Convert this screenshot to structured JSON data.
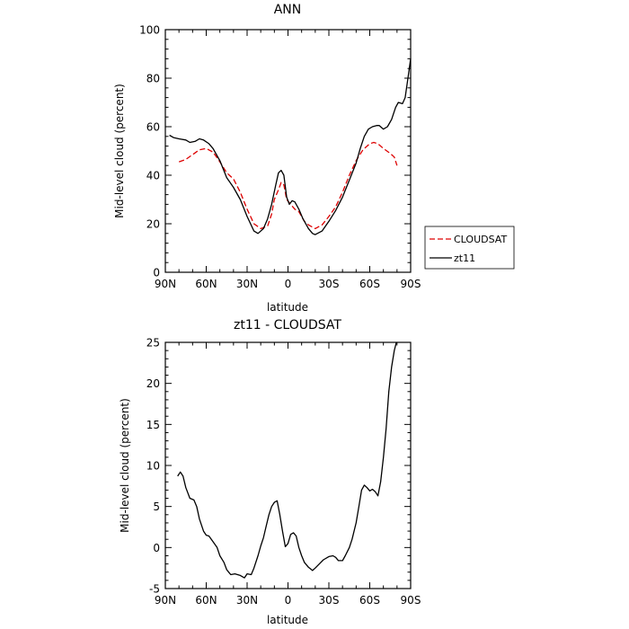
{
  "chart_data": [
    {
      "type": "line",
      "title": "ANN",
      "xlabel": "latitude",
      "ylabel": "Mid-level cloud (percent)",
      "xlim": [
        90,
        -90
      ],
      "ylim": [
        0,
        100
      ],
      "x_ticks": [
        90,
        60,
        30,
        0,
        -30,
        -60,
        -90
      ],
      "x_tick_labels": [
        "90N",
        "60N",
        "30N",
        "0",
        "30S",
        "60S",
        "90S"
      ],
      "y_ticks": [
        0,
        20,
        40,
        60,
        80,
        100
      ],
      "y_tick_labels": [
        "0",
        "20",
        "40",
        "60",
        "80",
        "100"
      ],
      "legend_position": "right",
      "series": [
        {
          "name": "CLOUDSAT",
          "color": "#dd0000",
          "dash": true,
          "points": [
            [
              80,
              45.5
            ],
            [
              75,
              46.5
            ],
            [
              70,
              48.5
            ],
            [
              65,
              50.5
            ],
            [
              60,
              51
            ],
            [
              55,
              49.5
            ],
            [
              50,
              45.5
            ],
            [
              45,
              41
            ],
            [
              40,
              38.5
            ],
            [
              35,
              33
            ],
            [
              30,
              26
            ],
            [
              25,
              20
            ],
            [
              20,
              18
            ],
            [
              15,
              19
            ],
            [
              12,
              24
            ],
            [
              10,
              30
            ],
            [
              7,
              34
            ],
            [
              5,
              37
            ],
            [
              3,
              36
            ],
            [
              1,
              30
            ],
            [
              -2,
              28
            ],
            [
              -5,
              26
            ],
            [
              -8,
              25
            ],
            [
              -12,
              21
            ],
            [
              -15,
              19.5
            ],
            [
              -20,
              18
            ],
            [
              -25,
              19.5
            ],
            [
              -30,
              23
            ],
            [
              -35,
              27
            ],
            [
              -40,
              33
            ],
            [
              -45,
              40
            ],
            [
              -50,
              46
            ],
            [
              -55,
              50.5
            ],
            [
              -60,
              53
            ],
            [
              -63,
              53.5
            ],
            [
              -66,
              53
            ],
            [
              -70,
              51
            ],
            [
              -75,
              49
            ],
            [
              -78,
              47.5
            ],
            [
              -80,
              44
            ]
          ]
        },
        {
          "name": "zt11",
          "color": "#000000",
          "dash": false,
          "points": [
            [
              87,
              56.5
            ],
            [
              84,
              55.5
            ],
            [
              80,
              55
            ],
            [
              75,
              54.5
            ],
            [
              72,
              53.5
            ],
            [
              68,
              54
            ],
            [
              65,
              55
            ],
            [
              62,
              54.5
            ],
            [
              58,
              53
            ],
            [
              55,
              51
            ],
            [
              50,
              46
            ],
            [
              45,
              39
            ],
            [
              40,
              35
            ],
            [
              35,
              30
            ],
            [
              30,
              23
            ],
            [
              25,
              17
            ],
            [
              22,
              16
            ],
            [
              18,
              18
            ],
            [
              15,
              22
            ],
            [
              12,
              28
            ],
            [
              9,
              36
            ],
            [
              7,
              41
            ],
            [
              5,
              42
            ],
            [
              3,
              40
            ],
            [
              1,
              31
            ],
            [
              -1,
              28
            ],
            [
              -3,
              29.5
            ],
            [
              -5,
              29
            ],
            [
              -8,
              26
            ],
            [
              -11,
              22
            ],
            [
              -15,
              18
            ],
            [
              -18,
              16
            ],
            [
              -20,
              15.5
            ],
            [
              -25,
              17
            ],
            [
              -30,
              21
            ],
            [
              -35,
              25.5
            ],
            [
              -40,
              31
            ],
            [
              -45,
              38
            ],
            [
              -50,
              45
            ],
            [
              -53,
              51
            ],
            [
              -56,
              56
            ],
            [
              -59,
              59
            ],
            [
              -62,
              60
            ],
            [
              -65,
              60.5
            ],
            [
              -67,
              60.5
            ],
            [
              -70,
              59
            ],
            [
              -73,
              60
            ],
            [
              -76,
              63
            ],
            [
              -79,
              68
            ],
            [
              -81,
              70
            ],
            [
              -84,
              69.5
            ],
            [
              -86,
              72
            ],
            [
              -88,
              80
            ],
            [
              -90,
              88
            ]
          ]
        }
      ]
    },
    {
      "type": "line",
      "title": "zt11 - CLOUDSAT",
      "xlabel": "latitude",
      "ylabel": "Mid-level cloud (percent)",
      "xlim": [
        90,
        -90
      ],
      "ylim": [
        -5,
        25
      ],
      "x_ticks": [
        90,
        60,
        30,
        0,
        -30,
        -60,
        -90
      ],
      "x_tick_labels": [
        "90N",
        "60N",
        "30N",
        "0",
        "30S",
        "60S",
        "90S"
      ],
      "y_ticks": [
        -5,
        0,
        5,
        10,
        15,
        20,
        25
      ],
      "y_tick_labels": [
        "-5",
        "0",
        "5",
        "10",
        "15",
        "20",
        "25"
      ],
      "series": [
        {
          "color": "#000000",
          "dash": false,
          "points": [
            [
              81,
              8.7
            ],
            [
              79,
              9.2
            ],
            [
              77,
              8.7
            ],
            [
              75,
              7.3
            ],
            [
              72,
              6.0
            ],
            [
              69,
              5.8
            ],
            [
              67,
              5.0
            ],
            [
              65,
              3.5
            ],
            [
              62,
              2.0
            ],
            [
              60,
              1.5
            ],
            [
              58,
              1.4
            ],
            [
              55,
              0.7
            ],
            [
              52,
              0.0
            ],
            [
              50,
              -1.0
            ],
            [
              47,
              -1.8
            ],
            [
              45,
              -2.7
            ],
            [
              42,
              -3.3
            ],
            [
              39,
              -3.2
            ],
            [
              35,
              -3.4
            ],
            [
              32,
              -3.7
            ],
            [
              30,
              -3.2
            ],
            [
              27,
              -3.3
            ],
            [
              25,
              -2.5
            ],
            [
              22,
              -1.0
            ],
            [
              20,
              0.2
            ],
            [
              18,
              1.2
            ],
            [
              16,
              2.6
            ],
            [
              14,
              4.0
            ],
            [
              12,
              5.0
            ],
            [
              10,
              5.5
            ],
            [
              8,
              5.7
            ],
            [
              6,
              4.0
            ],
            [
              4,
              2.0
            ],
            [
              2,
              0.1
            ],
            [
              0,
              0.5
            ],
            [
              -2,
              1.6
            ],
            [
              -4,
              1.8
            ],
            [
              -6,
              1.4
            ],
            [
              -8,
              0.0
            ],
            [
              -10,
              -1.0
            ],
            [
              -12,
              -1.8
            ],
            [
              -15,
              -2.4
            ],
            [
              -18,
              -2.8
            ],
            [
              -20,
              -2.5
            ],
            [
              -23,
              -2.0
            ],
            [
              -26,
              -1.5
            ],
            [
              -30,
              -1.1
            ],
            [
              -33,
              -1.0
            ],
            [
              -35,
              -1.2
            ],
            [
              -37,
              -1.6
            ],
            [
              -40,
              -1.6
            ],
            [
              -42,
              -1.0
            ],
            [
              -45,
              0.0
            ],
            [
              -47,
              1.0
            ],
            [
              -50,
              3.0
            ],
            [
              -52,
              5.0
            ],
            [
              -54,
              7.0
            ],
            [
              -56,
              7.6
            ],
            [
              -58,
              7.3
            ],
            [
              -60,
              6.9
            ],
            [
              -62,
              7.1
            ],
            [
              -64,
              6.8
            ],
            [
              -66,
              6.3
            ],
            [
              -68,
              8.0
            ],
            [
              -70,
              11.0
            ],
            [
              -72,
              14.5
            ],
            [
              -74,
              19.0
            ],
            [
              -76,
              22.0
            ],
            [
              -78,
              24.0
            ],
            [
              -79.5,
              25.0
            ]
          ]
        }
      ]
    }
  ]
}
